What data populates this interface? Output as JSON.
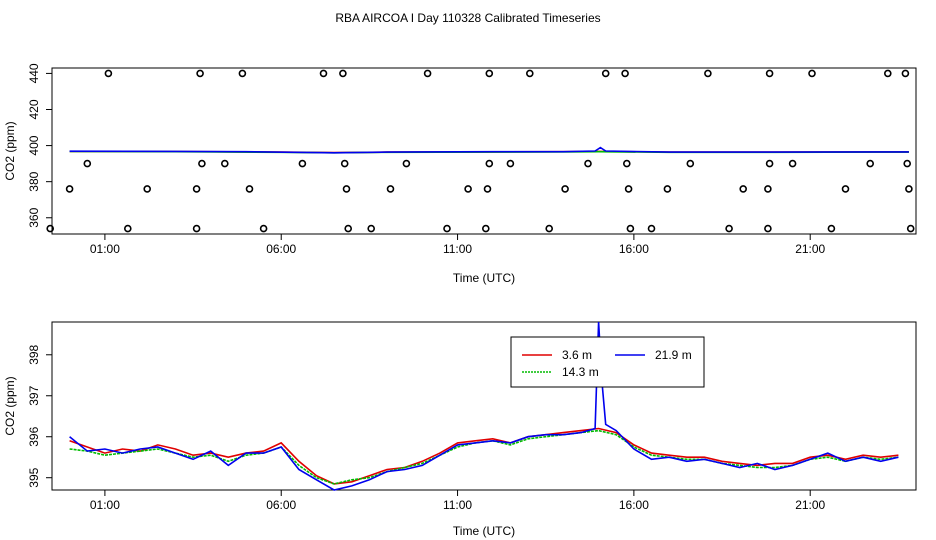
{
  "figure": {
    "title": "RBA AIRCOA I  Day 110328  Calibrated Timeseries"
  },
  "colors": {
    "red": "#e00000",
    "green": "#00bb00",
    "blue": "#0000ee"
  },
  "chart_data": [
    {
      "type": "scatter",
      "xlabel": "Time (UTC)",
      "ylabel": "CO2 (ppm)",
      "xlim": [
        -0.5,
        24.0
      ],
      "ylim": [
        351,
        443
      ],
      "x_ticks": [
        1,
        6,
        11,
        16,
        21
      ],
      "x_tick_labels": [
        "01:00",
        "06:00",
        "11:00",
        "16:00",
        "21:00"
      ],
      "y_ticks": [
        360,
        380,
        400,
        420,
        440
      ],
      "y_tick_labels": [
        "360",
        "380",
        "400",
        "420",
        "440"
      ],
      "grid": false,
      "lines": [
        {
          "color": "red",
          "points": [
            [
              0.0,
              396.8
            ],
            [
              3.0,
              396.7
            ],
            [
              6.0,
              396.4
            ],
            [
              7.5,
              396.1
            ],
            [
              9.0,
              396.4
            ],
            [
              12.0,
              396.5
            ],
            [
              14.0,
              396.6
            ],
            [
              15.0,
              396.8
            ],
            [
              17.0,
              396.4
            ],
            [
              20.0,
              396.4
            ],
            [
              23.0,
              396.5
            ],
            [
              23.8,
              396.5
            ]
          ]
        },
        {
          "color": "green",
          "points": [
            [
              0.0,
              396.7
            ],
            [
              3.0,
              396.6
            ],
            [
              6.0,
              396.3
            ],
            [
              7.5,
              396.0
            ],
            [
              9.0,
              396.3
            ],
            [
              12.0,
              396.4
            ],
            [
              14.0,
              396.5
            ],
            [
              15.0,
              396.6
            ],
            [
              17.0,
              396.3
            ],
            [
              20.0,
              396.3
            ],
            [
              23.0,
              396.4
            ],
            [
              23.8,
              396.4
            ]
          ]
        },
        {
          "color": "blue",
          "points": [
            [
              0.0,
              396.9
            ],
            [
              3.0,
              396.8
            ],
            [
              5.0,
              396.6
            ],
            [
              7.5,
              396.0
            ],
            [
              9.0,
              396.4
            ],
            [
              12.0,
              396.6
            ],
            [
              14.0,
              396.6
            ],
            [
              14.9,
              397.0
            ],
            [
              15.05,
              398.9
            ],
            [
              15.2,
              397.0
            ],
            [
              17.0,
              396.4
            ],
            [
              20.0,
              396.4
            ],
            [
              23.0,
              396.5
            ],
            [
              23.8,
              396.5
            ]
          ]
        }
      ],
      "points": [
        [
          1.1,
          440
        ],
        [
          3.7,
          440
        ],
        [
          4.9,
          440
        ],
        [
          7.2,
          440
        ],
        [
          7.75,
          440
        ],
        [
          10.15,
          440
        ],
        [
          11.9,
          440
        ],
        [
          13.05,
          440
        ],
        [
          15.2,
          440
        ],
        [
          15.75,
          440
        ],
        [
          18.1,
          440
        ],
        [
          19.85,
          440
        ],
        [
          21.05,
          440
        ],
        [
          23.2,
          440
        ],
        [
          23.7,
          440
        ],
        [
          0.5,
          390
        ],
        [
          3.75,
          390
        ],
        [
          4.4,
          390
        ],
        [
          6.6,
          390
        ],
        [
          7.8,
          390
        ],
        [
          9.55,
          390
        ],
        [
          11.9,
          390
        ],
        [
          12.5,
          390
        ],
        [
          14.7,
          390
        ],
        [
          15.8,
          390
        ],
        [
          17.6,
          390
        ],
        [
          19.85,
          390
        ],
        [
          20.5,
          390
        ],
        [
          22.7,
          390
        ],
        [
          23.75,
          390
        ],
        [
          0.0,
          376
        ],
        [
          2.2,
          376
        ],
        [
          3.6,
          376
        ],
        [
          5.1,
          376
        ],
        [
          7.85,
          376
        ],
        [
          9.1,
          376
        ],
        [
          11.3,
          376
        ],
        [
          11.85,
          376
        ],
        [
          14.05,
          376
        ],
        [
          15.85,
          376
        ],
        [
          16.95,
          376
        ],
        [
          19.1,
          376
        ],
        [
          19.8,
          376
        ],
        [
          22.0,
          376
        ],
        [
          23.8,
          376
        ],
        [
          -0.55,
          354
        ],
        [
          1.65,
          354
        ],
        [
          3.6,
          354
        ],
        [
          5.5,
          354
        ],
        [
          7.9,
          354
        ],
        [
          8.55,
          354
        ],
        [
          10.7,
          354
        ],
        [
          11.8,
          354
        ],
        [
          13.6,
          354
        ],
        [
          15.9,
          354
        ],
        [
          16.5,
          354
        ],
        [
          18.7,
          354
        ],
        [
          19.8,
          354
        ],
        [
          21.6,
          354
        ],
        [
          23.85,
          354
        ]
      ]
    },
    {
      "type": "line",
      "xlabel": "Time (UTC)",
      "ylabel": "CO2 (ppm)",
      "xlim": [
        -0.5,
        24.0
      ],
      "ylim": [
        394.7,
        398.8
      ],
      "x_ticks": [
        1,
        6,
        11,
        16,
        21
      ],
      "x_tick_labels": [
        "01:00",
        "06:00",
        "11:00",
        "16:00",
        "21:00"
      ],
      "y_ticks": [
        395,
        396,
        397,
        398
      ],
      "y_tick_labels": [
        "395",
        "396",
        "397",
        "398"
      ],
      "grid": false,
      "legend": {
        "placement": "top-center",
        "entries": [
          {
            "label": "3.6 m",
            "color": "red"
          },
          {
            "label": "14.3 m",
            "color": "green"
          },
          {
            "label": "21.9 m",
            "color": "blue"
          }
        ]
      },
      "series": [
        {
          "color": "red",
          "x": [
            0,
            0.5,
            1,
            1.5,
            2,
            2.5,
            3,
            3.5,
            4,
            4.5,
            5,
            5.5,
            6,
            6.5,
            7,
            7.5,
            8,
            8.5,
            9,
            9.5,
            10,
            10.5,
            11,
            11.5,
            12,
            12.5,
            13,
            13.5,
            14,
            14.5,
            15,
            15.5,
            16,
            16.5,
            17,
            17.5,
            18,
            18.5,
            19,
            19.5,
            20,
            20.5,
            21,
            21.5,
            22,
            22.5,
            23,
            23.5
          ],
          "y": [
            395.9,
            395.75,
            395.6,
            395.7,
            395.65,
            395.8,
            395.7,
            395.55,
            395.6,
            395.5,
            395.6,
            395.65,
            395.85,
            395.4,
            395.05,
            394.85,
            394.9,
            395.05,
            395.2,
            395.25,
            395.4,
            395.6,
            395.85,
            395.9,
            395.95,
            395.85,
            396.0,
            396.05,
            396.1,
            396.15,
            396.2,
            396.1,
            395.8,
            395.6,
            395.55,
            395.5,
            395.5,
            395.4,
            395.35,
            395.3,
            395.35,
            395.35,
            395.5,
            395.55,
            395.45,
            395.55,
            395.5,
            395.55
          ]
        },
        {
          "color": "green",
          "x": [
            0,
            0.5,
            1,
            1.5,
            2,
            2.5,
            3,
            3.5,
            4,
            4.5,
            5,
            5.5,
            6,
            6.5,
            7,
            7.5,
            8,
            8.5,
            9,
            9.5,
            10,
            10.5,
            11,
            11.5,
            12,
            12.5,
            13,
            13.5,
            14,
            14.5,
            15,
            15.5,
            16,
            16.5,
            17,
            17.5,
            18,
            18.5,
            19,
            19.5,
            20,
            20.5,
            21,
            21.5,
            22,
            22.5,
            23,
            23.5
          ],
          "y": [
            395.7,
            395.65,
            395.55,
            395.6,
            395.65,
            395.7,
            395.6,
            395.5,
            395.55,
            395.4,
            395.55,
            395.6,
            395.75,
            395.3,
            395.0,
            394.85,
            394.95,
            395.0,
            395.15,
            395.25,
            395.35,
            395.55,
            395.75,
            395.85,
            395.9,
            395.8,
            395.95,
            396.0,
            396.05,
            396.1,
            396.15,
            396.05,
            395.75,
            395.55,
            395.5,
            395.45,
            395.45,
            395.35,
            395.3,
            395.25,
            395.25,
            395.3,
            395.45,
            395.5,
            395.4,
            395.5,
            395.45,
            395.5
          ]
        },
        {
          "color": "blue",
          "x": [
            0,
            0.5,
            1,
            1.5,
            2,
            2.5,
            3,
            3.5,
            4,
            4.5,
            5,
            5.5,
            6,
            6.5,
            7,
            7.5,
            8,
            8.5,
            9,
            9.5,
            10,
            10.5,
            11,
            11.5,
            12,
            12.5,
            13,
            13.5,
            14,
            14.5,
            14.9,
            15.0,
            15.1,
            15.2,
            15.5,
            16,
            16.5,
            17,
            17.5,
            18,
            18.5,
            19,
            19.5,
            20,
            20.5,
            21,
            21.5,
            22,
            22.5,
            23,
            23.5
          ],
          "y": [
            396.0,
            395.65,
            395.7,
            395.6,
            395.7,
            395.75,
            395.6,
            395.45,
            395.65,
            395.3,
            395.6,
            395.6,
            395.75,
            395.2,
            394.95,
            394.7,
            394.8,
            394.95,
            395.15,
            395.2,
            395.3,
            395.55,
            395.8,
            395.85,
            395.9,
            395.85,
            396.0,
            396.05,
            396.05,
            396.1,
            396.2,
            398.8,
            397.3,
            396.3,
            396.15,
            395.7,
            395.45,
            395.5,
            395.4,
            395.45,
            395.35,
            395.25,
            395.35,
            395.2,
            395.3,
            395.45,
            395.6,
            395.4,
            395.5,
            395.4,
            395.5
          ]
        }
      ]
    }
  ]
}
